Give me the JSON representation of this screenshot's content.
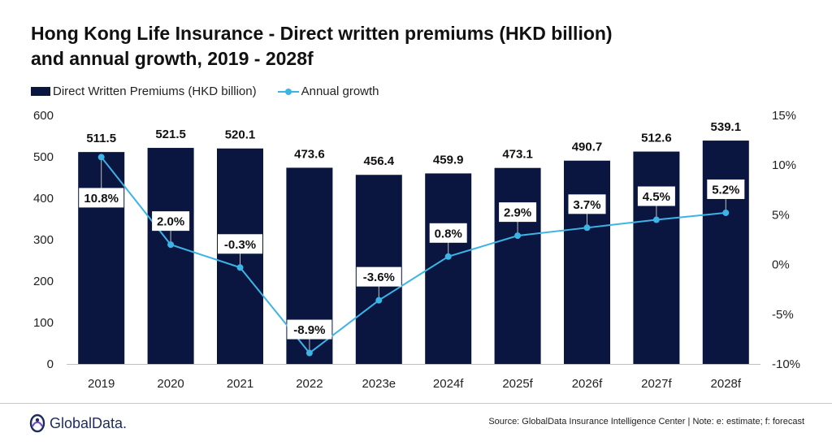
{
  "title_line1": "Hong Kong Life Insurance - Direct written premiums (HKD billion)",
  "title_line2": "and annual growth, 2019 - 2028f",
  "legend": {
    "bar_label": "Direct Written Premiums (HKD billion)",
    "line_label": "Annual growth"
  },
  "footer": {
    "logo_text": "GlobalData.",
    "source": "Source:  GlobalData Insurance Intelligence Center | Note: e: estimate; f: forecast"
  },
  "colors": {
    "bar": "#0b1640",
    "line": "#3cb4e6",
    "logo": "#1e2b5c"
  },
  "chart_data": {
    "type": "bar",
    "title": "Hong Kong Life Insurance - Direct written premiums (HKD billion) and annual growth, 2019 - 2028f",
    "categories": [
      "2019",
      "2020",
      "2021",
      "2022",
      "2023e",
      "2024f",
      "2025f",
      "2026f",
      "2027f",
      "2028f"
    ],
    "series": [
      {
        "name": "Direct Written Premiums (HKD billion)",
        "type": "bar",
        "axis": "left",
        "values": [
          511.5,
          521.5,
          520.1,
          473.6,
          456.4,
          459.9,
          473.1,
          490.7,
          512.6,
          539.1
        ],
        "labels": [
          "511.5",
          "521.5",
          "520.1",
          "473.6",
          "456.4",
          "459.9",
          "473.1",
          "490.7",
          "512.6",
          "539.1"
        ]
      },
      {
        "name": "Annual growth",
        "type": "line",
        "axis": "right",
        "values": [
          10.8,
          2.0,
          -0.3,
          -8.9,
          -3.6,
          0.8,
          2.9,
          3.7,
          4.5,
          5.2
        ],
        "labels": [
          "10.8%",
          "2.0%",
          "-0.3%",
          "-8.9%",
          "-3.6%",
          "0.8%",
          "2.9%",
          "3.7%",
          "4.5%",
          "5.2%"
        ]
      }
    ],
    "y_left": {
      "min": 0,
      "max": 600,
      "ticks": [
        0,
        100,
        200,
        300,
        400,
        500,
        600
      ],
      "tick_labels": [
        "0",
        "100",
        "200",
        "300",
        "400",
        "500",
        "600"
      ]
    },
    "y_right": {
      "min": -10,
      "max": 15,
      "ticks": [
        -10,
        -5,
        0,
        5,
        10,
        15
      ],
      "tick_labels": [
        "-10%",
        "-5%",
        "0%",
        "5%",
        "10%",
        "15%"
      ]
    },
    "grid": false,
    "legend_position": "top-left"
  }
}
